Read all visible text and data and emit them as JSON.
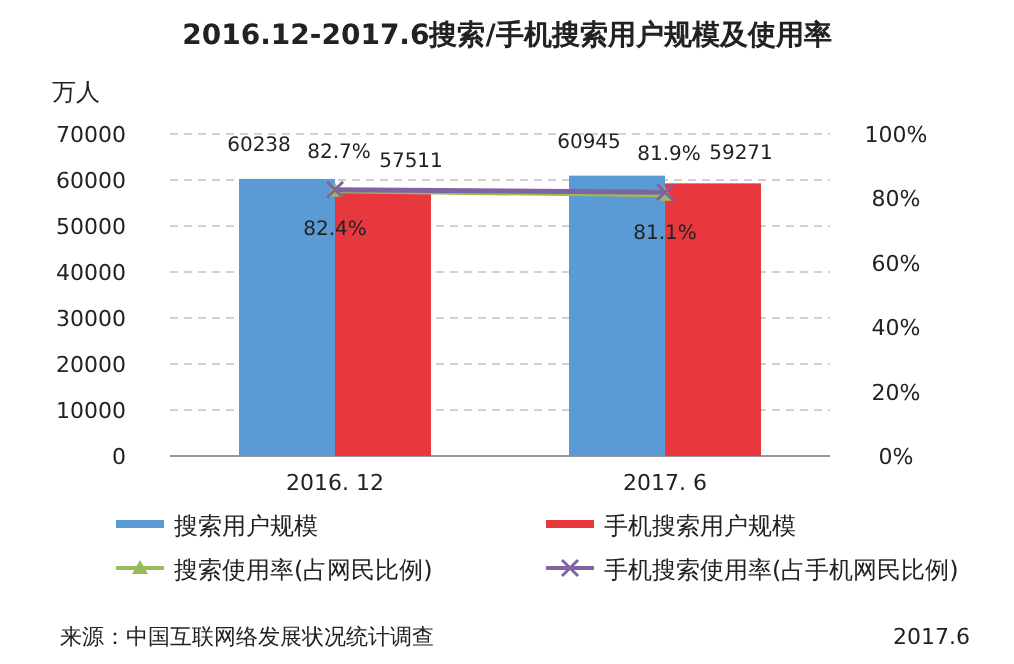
{
  "chart_data": {
    "type": "bar",
    "title": "2016.12-2017.6搜索/手机搜索用户规模及使用率",
    "ylabel": "万人",
    "categories": [
      "2016. 12",
      "2017. 6"
    ],
    "series": [
      {
        "name": "搜索用户规模",
        "color": "#5b9bd5",
        "values": [
          60238,
          60945
        ]
      },
      {
        "name": "手机搜索用户规模",
        "color": "#e8383d",
        "values": [
          57511,
          59271
        ]
      },
      {
        "name": "搜索使用率(占网民比例)",
        "type": "line",
        "axis": "y2",
        "color": "#9bbb59",
        "marker": "triangle",
        "values": [
          82.4,
          81.1
        ],
        "value_labels": [
          "82.4%",
          "81.1%"
        ]
      },
      {
        "name": "手机搜索使用率(占手机网民比例)",
        "type": "line",
        "axis": "y2",
        "color": "#8064a2",
        "marker": "cross",
        "values": [
          82.7,
          81.9
        ],
        "value_labels": [
          "82.7%",
          "81.9%"
        ]
      }
    ],
    "ylim": [
      0,
      70000
    ],
    "yticks": [
      0,
      10000,
      20000,
      30000,
      40000,
      50000,
      60000,
      70000
    ],
    "y2lim": [
      0,
      100
    ],
    "y2ticks": [
      {
        "value": 0,
        "label": "0%"
      },
      {
        "value": 20,
        "label": "20%"
      },
      {
        "value": 40,
        "label": "40%"
      },
      {
        "value": 60,
        "label": "60%"
      },
      {
        "value": 80,
        "label": "80%"
      },
      {
        "value": 100,
        "label": "100%"
      }
    ],
    "grid": "y",
    "legend": "bottom",
    "data_labels": true,
    "annotations": [
      "来源：中国互联网络发展状况统计调查",
      "2017.6"
    ]
  }
}
